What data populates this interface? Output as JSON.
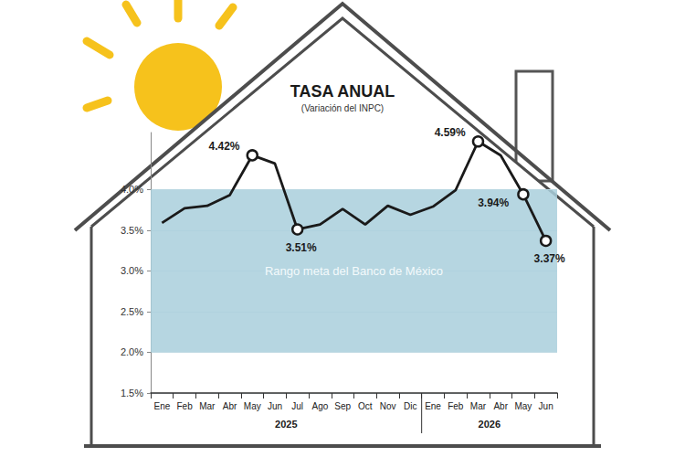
{
  "chart_data": {
    "type": "line",
    "title": "TASA ANUAL",
    "subtitle": "(Variación del INPC)",
    "categories": [
      "Ene",
      "Feb",
      "Mar",
      "Abr",
      "May",
      "Jun",
      "Jul",
      "Ago",
      "Sep",
      "Oct",
      "Nov",
      "Dic",
      "Ene",
      "Feb",
      "Mar",
      "Abr",
      "May",
      "Jun"
    ],
    "groups": [
      {
        "label": "2025",
        "count": 12
      },
      {
        "label": "2026",
        "count": 6
      }
    ],
    "values": [
      3.59,
      3.77,
      3.8,
      3.93,
      4.42,
      4.32,
      3.51,
      3.57,
      3.76,
      3.57,
      3.8,
      3.69,
      3.79,
      3.99,
      4.59,
      4.42,
      3.94,
      3.37
    ],
    "value_labels": [
      null,
      null,
      null,
      null,
      "4.42%",
      null,
      "3.51%",
      null,
      null,
      null,
      null,
      null,
      null,
      null,
      "4.59%",
      null,
      "3.94%",
      "3.37%"
    ],
    "data_labels": true,
    "color": "#1a1a1a",
    "marker": "circle",
    "ylim": [
      1.5,
      4.7
    ],
    "yticks": [
      {
        "value": 1.5,
        "label": "1.5%"
      },
      {
        "value": 2.0,
        "label": "2.0%"
      },
      {
        "value": 2.5,
        "label": "2.5%"
      },
      {
        "value": 3.0,
        "label": "3.0%"
      },
      {
        "value": 3.5,
        "label": "3.5%"
      },
      {
        "value": 4.0,
        "label": "4.0%"
      }
    ],
    "grid": true,
    "target_range": {
      "label": "Rango meta del Banco de México",
      "range": [
        2.0,
        4.0
      ],
      "color": "#a9cfdc"
    }
  }
}
